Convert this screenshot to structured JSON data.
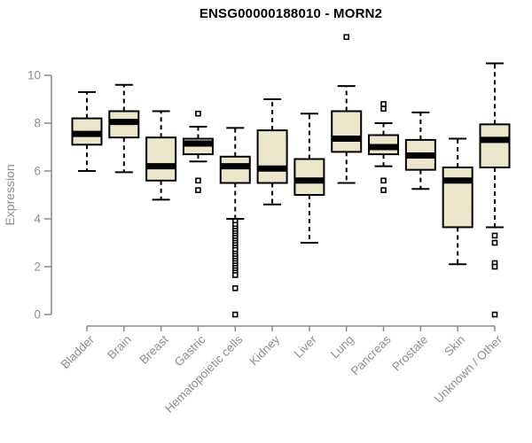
{
  "page": {
    "background_color": "#ffffff"
  },
  "chart_data": {
    "type": "boxplot",
    "title": "ENSG00000188010 - MORN2",
    "xlabel": "",
    "ylabel": "Expression",
    "ylim": [
      0,
      10
    ],
    "yticks": [
      0,
      2,
      4,
      6,
      8,
      10
    ],
    "grid": false,
    "legend": null,
    "colors": {
      "box_fill": "#ece7cc",
      "box_border": "#000000",
      "median_line": "#000000",
      "whisker": "#000000",
      "outlier": "#000000",
      "axis_line": "#888888",
      "tick_text": "#8e8e8e",
      "title_text": "#000000"
    },
    "categories": [
      "Bladder",
      "Brain",
      "Breast",
      "Gastric",
      "Hematopoietic cells",
      "Kidney",
      "Liver",
      "Lung",
      "Pancreas",
      "Prostate",
      "Skin",
      "Unknown / Other"
    ],
    "boxes": [
      {
        "category": "Bladder",
        "whisker_low": 6.0,
        "q1": 7.1,
        "median": 7.55,
        "q3": 8.2,
        "whisker_high": 9.3,
        "outliers": []
      },
      {
        "category": "Brain",
        "whisker_low": 5.95,
        "q1": 7.4,
        "median": 8.05,
        "q3": 8.5,
        "whisker_high": 9.6,
        "outliers": []
      },
      {
        "category": "Breast",
        "whisker_low": 4.8,
        "q1": 5.6,
        "median": 6.2,
        "q3": 7.4,
        "whisker_high": 8.5,
        "outliers": []
      },
      {
        "category": "Gastric",
        "whisker_low": 6.4,
        "q1": 6.7,
        "median": 7.15,
        "q3": 7.35,
        "whisker_high": 7.85,
        "outliers": [
          8.4,
          5.6,
          5.2
        ]
      },
      {
        "category": "Hematopoietic cells",
        "whisker_low": 4.0,
        "q1": 5.5,
        "median": 6.2,
        "q3": 6.6,
        "whisker_high": 7.8,
        "outliers": [
          3.9,
          3.75,
          3.6,
          3.5,
          3.4,
          3.3,
          3.2,
          3.1,
          3.0,
          2.9,
          2.8,
          2.7,
          2.55,
          2.45,
          2.35,
          2.25,
          2.15,
          2.05,
          1.95,
          1.85,
          1.75,
          1.65,
          1.1,
          0
        ]
      },
      {
        "category": "Kidney",
        "whisker_low": 4.6,
        "q1": 5.5,
        "median": 6.1,
        "q3": 7.7,
        "whisker_high": 9.0,
        "outliers": []
      },
      {
        "category": "Liver",
        "whisker_low": 3.0,
        "q1": 5.0,
        "median": 5.6,
        "q3": 6.5,
        "whisker_high": 8.4,
        "outliers": []
      },
      {
        "category": "Lung",
        "whisker_low": 5.5,
        "q1": 6.8,
        "median": 7.35,
        "q3": 8.5,
        "whisker_high": 9.55,
        "outliers": [
          11.6
        ]
      },
      {
        "category": "Pancreas",
        "whisker_low": 6.2,
        "q1": 6.7,
        "median": 7.0,
        "q3": 7.5,
        "whisker_high": 8.0,
        "outliers": [
          8.8,
          8.6,
          5.6,
          5.2
        ]
      },
      {
        "category": "Prostate",
        "whisker_low": 5.25,
        "q1": 6.05,
        "median": 6.65,
        "q3": 7.3,
        "whisker_high": 8.45,
        "outliers": []
      },
      {
        "category": "Skin",
        "whisker_low": 2.1,
        "q1": 3.65,
        "median": 5.6,
        "q3": 6.15,
        "whisker_high": 7.35,
        "outliers": []
      },
      {
        "category": "Unknown / Other",
        "whisker_low": 3.65,
        "q1": 6.15,
        "median": 7.3,
        "q3": 7.95,
        "whisker_high": 10.5,
        "outliers": [
          3.3,
          3.0,
          2.15,
          2.0,
          0
        ]
      }
    ]
  }
}
